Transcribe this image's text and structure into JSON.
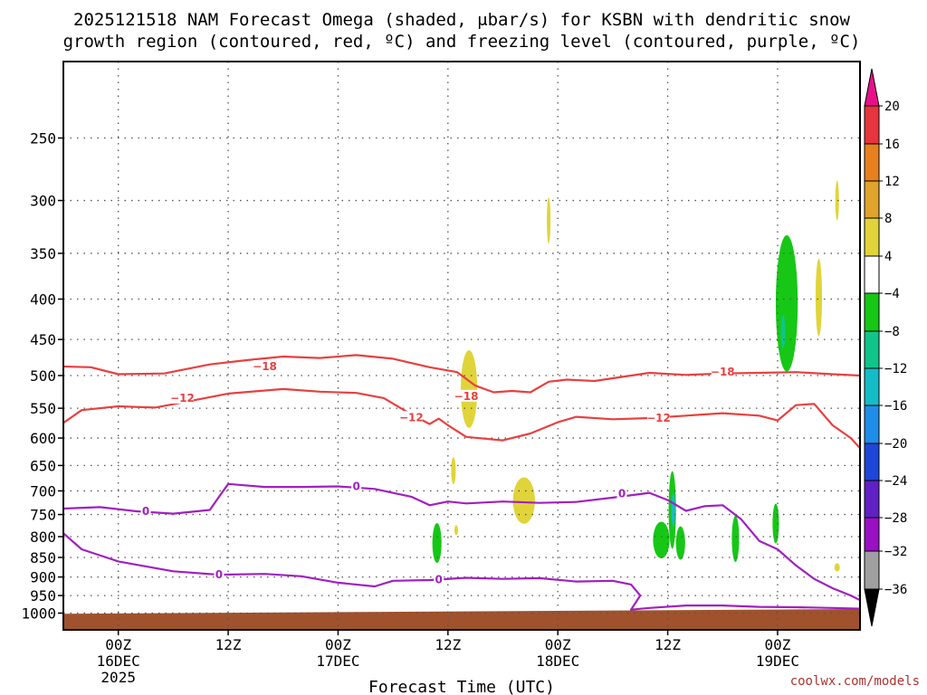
{
  "chart_data": {
    "type": "heatmap",
    "title_line1": "2025121518 NAM Forecast Omega (shaded, μbar/s) for KSBN with dendritic snow",
    "title_line2": "growth region (contoured, red, ºC) and freezing level (contoured, purple, ºC)",
    "xlabel": "Forecast Time (UTC)",
    "ylabel": "",
    "credit": "coolwx.com/models",
    "y_axis": {
      "scale": "log",
      "reversed": true,
      "range": [
        200,
        1050
      ],
      "ticks": [
        250,
        300,
        350,
        400,
        450,
        500,
        550,
        600,
        650,
        700,
        750,
        800,
        850,
        900,
        950,
        1000
      ]
    },
    "x_axis": {
      "unit": "hours",
      "range": [
        -6,
        81
      ],
      "ticks": [
        {
          "x": 0,
          "line1": "00Z",
          "line2": "16DEC",
          "line3": "2025"
        },
        {
          "x": 12,
          "line1": "12Z",
          "line2": "",
          "line3": ""
        },
        {
          "x": 24,
          "line1": "00Z",
          "line2": "17DEC",
          "line3": ""
        },
        {
          "x": 36,
          "line1": "12Z",
          "line2": "",
          "line3": ""
        },
        {
          "x": 48,
          "line1": "00Z",
          "line2": "18DEC",
          "line3": ""
        },
        {
          "x": 60,
          "line1": "12Z",
          "line2": "",
          "line3": ""
        },
        {
          "x": 72,
          "line1": "00Z",
          "line2": "19DEC",
          "line3": ""
        }
      ]
    },
    "grid": true,
    "colorbar": {
      "placement": "right",
      "labels": [
        "20",
        "16",
        "12",
        "8",
        "4",
        "−4",
        "−8",
        "−12",
        "−16",
        "−20",
        "−24",
        "−28",
        "−32",
        "−36"
      ],
      "bands": [
        {
          "range": ">20",
          "color": "#e8108a"
        },
        {
          "range": "16 to 20",
          "color": "#e8343c"
        },
        {
          "range": "12 to 16",
          "color": "#e8801e"
        },
        {
          "range": "8 to 12",
          "color": "#e0a32c"
        },
        {
          "range": "4 to 8",
          "color": "#e0d43a"
        },
        {
          "range": "-4 to 4",
          "color": "#ffffff"
        },
        {
          "range": "-8 to -4",
          "color": "#16c716"
        },
        {
          "range": "-12 to -8",
          "color": "#10c48a"
        },
        {
          "range": "-16 to -12",
          "color": "#14bcc8"
        },
        {
          "range": "-20 to -16",
          "color": "#1e8ee8"
        },
        {
          "range": "-24 to -20",
          "color": "#1e46d8"
        },
        {
          "range": "-28 to -24",
          "color": "#6020c4"
        },
        {
          "range": "-32 to -28",
          "color": "#9a10c4"
        },
        {
          "range": "-36 to -32",
          "color": "#a0a0a0"
        },
        {
          "range": "<-36",
          "color": "#000000"
        }
      ]
    },
    "terrain": {
      "color": "#a0522d",
      "top_p": [
        [
          -6,
          1002
        ],
        [
          81,
          988
        ]
      ]
    },
    "contours": [
      {
        "level": "-18",
        "color": "#e84040",
        "label_at": [
          {
            "x": 16,
            "p": 487
          },
          {
            "x": 66,
            "p": 495
          },
          {
            "x": 38,
            "p": 531
          }
        ],
        "points": [
          [
            -6,
            487
          ],
          [
            -3,
            488
          ],
          [
            0,
            498
          ],
          [
            5,
            497
          ],
          [
            10,
            484
          ],
          [
            14,
            478
          ],
          [
            18,
            473
          ],
          [
            22,
            475
          ],
          [
            26,
            471
          ],
          [
            30,
            476
          ],
          [
            34,
            488
          ],
          [
            37,
            495
          ],
          [
            39,
            515
          ],
          [
            41,
            525
          ],
          [
            43,
            523
          ],
          [
            45,
            525
          ],
          [
            47,
            509
          ],
          [
            49,
            506
          ],
          [
            52,
            508
          ],
          [
            55,
            502
          ],
          [
            58,
            496
          ],
          [
            62,
            499
          ],
          [
            66,
            497
          ],
          [
            70,
            496
          ],
          [
            74,
            495
          ],
          [
            78,
            498
          ],
          [
            81,
            500
          ]
        ]
      },
      {
        "level": "-12",
        "color": "#e84040",
        "label_at": [
          {
            "x": 7,
            "p": 534
          },
          {
            "x": 32,
            "p": 565
          },
          {
            "x": 59,
            "p": 566
          }
        ],
        "points": [
          [
            -6,
            574
          ],
          [
            -4,
            553
          ],
          [
            0,
            547
          ],
          [
            4,
            549
          ],
          [
            8,
            538
          ],
          [
            12,
            527
          ],
          [
            18,
            520
          ],
          [
            22,
            524
          ],
          [
            26,
            526
          ],
          [
            29,
            534
          ],
          [
            32,
            560
          ],
          [
            34,
            576
          ],
          [
            35,
            567
          ],
          [
            36,
            578
          ],
          [
            38,
            598
          ],
          [
            42,
            604
          ],
          [
            45,
            592
          ],
          [
            48,
            573
          ],
          [
            50,
            564
          ],
          [
            54,
            568
          ],
          [
            58,
            566
          ],
          [
            62,
            562
          ],
          [
            66,
            558
          ],
          [
            70,
            562
          ],
          [
            72,
            570
          ],
          [
            74,
            545
          ],
          [
            76,
            543
          ],
          [
            78,
            578
          ],
          [
            80,
            600
          ],
          [
            81,
            618
          ]
        ]
      },
      {
        "level": "0",
        "color": "#a020c0",
        "label_at": [
          {
            "x": 3,
            "p": 743
          },
          {
            "x": 26,
            "p": 691
          },
          {
            "x": 55,
            "p": 706
          }
        ],
        "points": [
          [
            -6,
            737
          ],
          [
            -2,
            734
          ],
          [
            2,
            743
          ],
          [
            6,
            748
          ],
          [
            10,
            740
          ],
          [
            11,
            712
          ],
          [
            12,
            686
          ],
          [
            16,
            692
          ],
          [
            20,
            692
          ],
          [
            24,
            691
          ],
          [
            28,
            696
          ],
          [
            32,
            712
          ],
          [
            34,
            730
          ],
          [
            36,
            722
          ],
          [
            38,
            726
          ],
          [
            42,
            722
          ],
          [
            46,
            725
          ],
          [
            50,
            723
          ],
          [
            54,
            714
          ],
          [
            58,
            704
          ],
          [
            60,
            719
          ],
          [
            62,
            742
          ],
          [
            64,
            732
          ],
          [
            66,
            730
          ],
          [
            68,
            760
          ],
          [
            70,
            810
          ],
          [
            72,
            830
          ],
          [
            74,
            870
          ],
          [
            76,
            905
          ],
          [
            78,
            930
          ],
          [
            80,
            950
          ],
          [
            81,
            963
          ]
        ]
      },
      {
        "level": "0",
        "color": "#a020c0",
        "label_at": [
          {
            "x": 11,
            "p": 894
          },
          {
            "x": 35,
            "p": 907
          }
        ],
        "points": [
          [
            -6,
            792
          ],
          [
            -4,
            830
          ],
          [
            0,
            860
          ],
          [
            6,
            885
          ],
          [
            11,
            894
          ],
          [
            16,
            892
          ],
          [
            20,
            898
          ],
          [
            24,
            915
          ],
          [
            28,
            925
          ],
          [
            30,
            910
          ],
          [
            34,
            908
          ],
          [
            38,
            902
          ],
          [
            42,
            905
          ],
          [
            46,
            903
          ],
          [
            50,
            912
          ],
          [
            54,
            910
          ],
          [
            56,
            920
          ],
          [
            57,
            950
          ],
          [
            56,
            990
          ],
          [
            58,
            985
          ],
          [
            62,
            978
          ],
          [
            66,
            978
          ],
          [
            70,
            982
          ],
          [
            74,
            983
          ],
          [
            78,
            985
          ],
          [
            81,
            987
          ]
        ]
      }
    ],
    "omega_cells": [
      {
        "x": 38.3,
        "p": 520,
        "dx": 0.9,
        "dp_frac": 0.12,
        "value": 6
      },
      {
        "x": 47,
        "p": 318,
        "dx": 0.2,
        "dp_frac": 0.07,
        "value": 6
      },
      {
        "x": 36.6,
        "p": 660,
        "dx": 0.25,
        "dp_frac": 0.04,
        "value": 6
      },
      {
        "x": 36.9,
        "p": 785,
        "dx": 0.2,
        "dp_frac": 0.015,
        "value": 6
      },
      {
        "x": 44.3,
        "p": 720,
        "dx": 1.2,
        "dp_frac": 0.07,
        "value": 6
      },
      {
        "x": 76.5,
        "p": 398,
        "dx": 0.35,
        "dp_frac": 0.12,
        "value": 6
      },
      {
        "x": 78.5,
        "p": 300,
        "dx": 0.15,
        "dp_frac": 0.06,
        "value": 6
      },
      {
        "x": 78.5,
        "p": 875,
        "dx": 0.3,
        "dp_frac": 0.012,
        "value": 6
      },
      {
        "x": 34.8,
        "p": 815,
        "dx": 0.5,
        "dp_frac": 0.06,
        "value": -6
      },
      {
        "x": 73,
        "p": 405,
        "dx": 1.2,
        "dp_frac": 0.22,
        "value": -6
      },
      {
        "x": 72.6,
        "p": 440,
        "dx": 0.25,
        "dp_frac": 0.05,
        "value": -10
      },
      {
        "x": 60.5,
        "p": 740,
        "dx": 0.4,
        "dp_frac": 0.12,
        "value": -6
      },
      {
        "x": 60.6,
        "p": 740,
        "dx": 0.2,
        "dp_frac": 0.05,
        "value": -13
      },
      {
        "x": 59.3,
        "p": 808,
        "dx": 0.9,
        "dp_frac": 0.055,
        "value": -6
      },
      {
        "x": 61.4,
        "p": 815,
        "dx": 0.5,
        "dp_frac": 0.05,
        "value": -6
      },
      {
        "x": 67.4,
        "p": 805,
        "dx": 0.4,
        "dp_frac": 0.07,
        "value": -6
      },
      {
        "x": 71.8,
        "p": 770,
        "dx": 0.35,
        "dp_frac": 0.06,
        "value": -6
      }
    ]
  }
}
